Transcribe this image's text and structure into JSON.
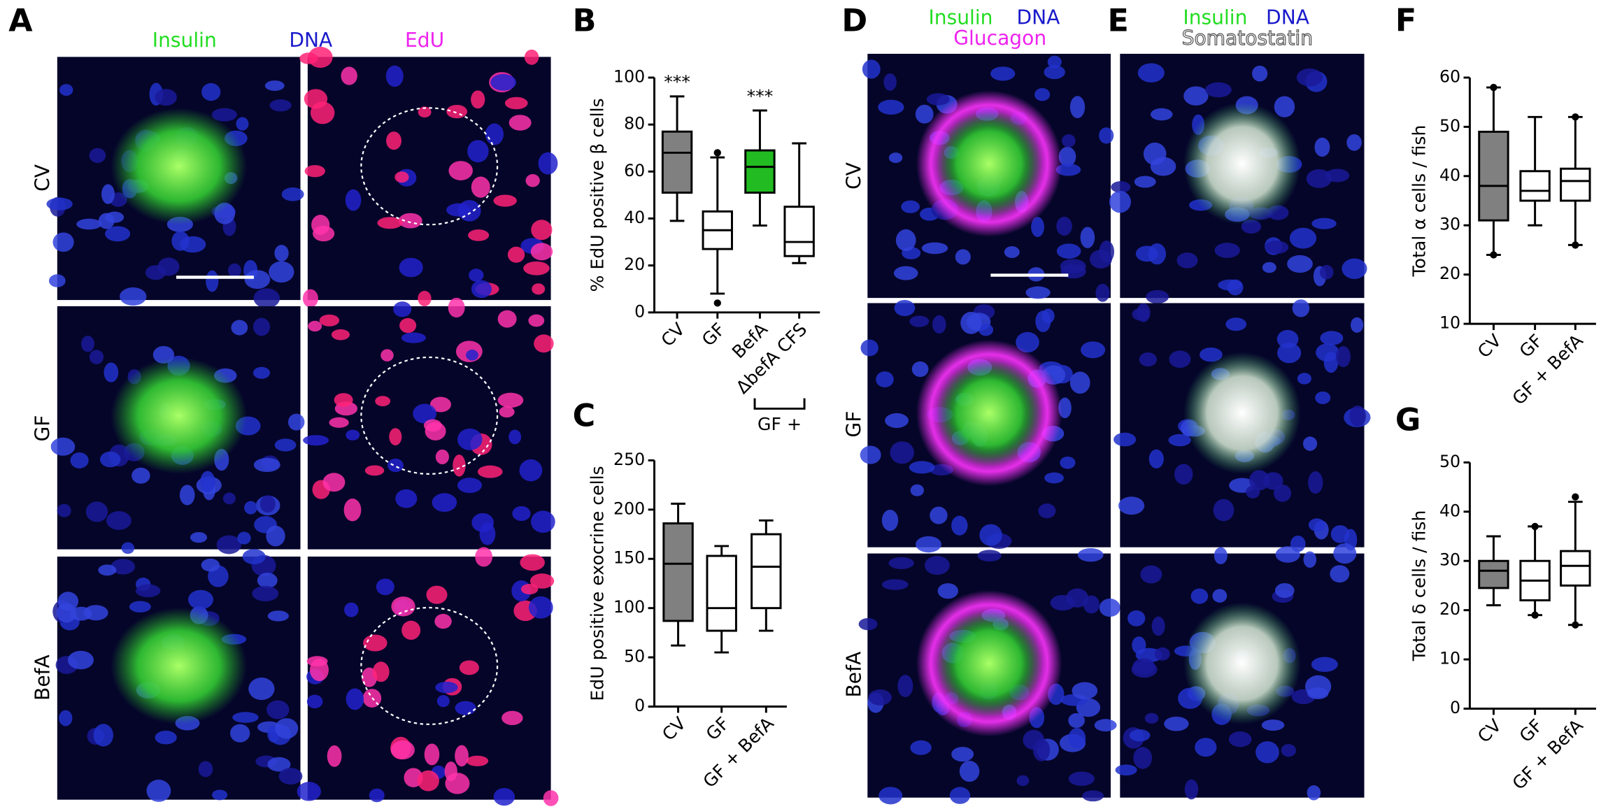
{
  "figure": {
    "panel_a": {
      "letter": "A",
      "headers": [
        "Insulin",
        "DNA",
        "EdU"
      ],
      "rows": [
        "CV",
        "GF",
        "BefA"
      ]
    },
    "panel_d": {
      "letter": "D",
      "headers": [
        "Insulin",
        "DNA",
        "Glucagon"
      ],
      "rows": [
        "CV",
        "GF",
        "BefA"
      ]
    },
    "panel_e": {
      "letter": "E",
      "headers": [
        "Insulin",
        "DNA",
        "Somatostatin"
      ]
    }
  },
  "chart_data": [
    {
      "type": "box",
      "panel": "B",
      "y_label": "% EdU positive β cells",
      "categories": [
        "CV",
        "GF",
        "BefA",
        "ΔbefA CFS"
      ],
      "colors": [
        "#808080",
        "#ffffff",
        "#22bb22",
        "#ffffff"
      ],
      "boxes": [
        {
          "low": 39,
          "q1": 51,
          "median": 68,
          "q3": 77,
          "high": 92,
          "outliers": []
        },
        {
          "low": 8,
          "q1": 27,
          "median": 35,
          "q3": 43,
          "high": 66,
          "outliers": [
            68,
            4
          ]
        },
        {
          "low": 37,
          "q1": 51,
          "median": 62,
          "q3": 69,
          "high": 86,
          "outliers": []
        },
        {
          "low": 21,
          "q1": 24,
          "median": 30,
          "q3": 45,
          "high": 72,
          "outliers": []
        }
      ],
      "annotations": [
        "***",
        null,
        "***",
        null
      ],
      "bracket_label": "GF +",
      "ylim": [
        0,
        100
      ],
      "yticks": [
        0,
        20,
        40,
        60,
        80,
        100
      ]
    },
    {
      "type": "box",
      "panel": "C",
      "y_label": "EdU positive exocrine cells",
      "categories": [
        "CV",
        "GF",
        "GF + BefA"
      ],
      "colors": [
        "#808080",
        "#ffffff",
        "#ffffff"
      ],
      "boxes": [
        {
          "low": 62,
          "q1": 87,
          "median": 145,
          "q3": 186,
          "high": 206,
          "outliers": []
        },
        {
          "low": 55,
          "q1": 77,
          "median": 100,
          "q3": 153,
          "high": 163,
          "outliers": []
        },
        {
          "low": 77,
          "q1": 100,
          "median": 142,
          "q3": 175,
          "high": 189,
          "outliers": []
        }
      ],
      "ylim": [
        0,
        250
      ],
      "yticks": [
        0,
        50,
        100,
        150,
        200,
        250
      ]
    },
    {
      "type": "box",
      "panel": "F",
      "y_label": "Total α cells / fish",
      "categories": [
        "CV",
        "GF",
        "GF + BefA"
      ],
      "colors": [
        "#808080",
        "#ffffff",
        "#ffffff"
      ],
      "boxes": [
        {
          "low": 24,
          "q1": 31,
          "median": 38,
          "q3": 49,
          "high": 58,
          "outliers": [
            58,
            24
          ]
        },
        {
          "low": 30,
          "q1": 35,
          "median": 37,
          "q3": 41,
          "high": 52,
          "outliers": []
        },
        {
          "low": 26,
          "q1": 35,
          "median": 39,
          "q3": 41.5,
          "high": 52,
          "outliers": [
            52,
            26
          ]
        }
      ],
      "ylim": [
        10,
        60
      ],
      "yticks": [
        10,
        20,
        30,
        40,
        50,
        60
      ]
    },
    {
      "type": "box",
      "panel": "G",
      "y_label": "Total δ cells / fish",
      "categories": [
        "CV",
        "GF",
        "GF + BefA"
      ],
      "colors": [
        "#808080",
        "#ffffff",
        "#ffffff"
      ],
      "boxes": [
        {
          "low": 21,
          "q1": 24.5,
          "median": 28,
          "q3": 30,
          "high": 35,
          "outliers": []
        },
        {
          "low": 19,
          "q1": 22,
          "median": 26,
          "q3": 30,
          "high": 37,
          "outliers": [
            37,
            19
          ]
        },
        {
          "low": 17,
          "q1": 25,
          "median": 29,
          "q3": 32,
          "high": 42,
          "outliers": [
            43,
            17
          ]
        }
      ],
      "ylim": [
        0,
        50
      ],
      "yticks": [
        0,
        10,
        20,
        30,
        40,
        50
      ]
    }
  ]
}
